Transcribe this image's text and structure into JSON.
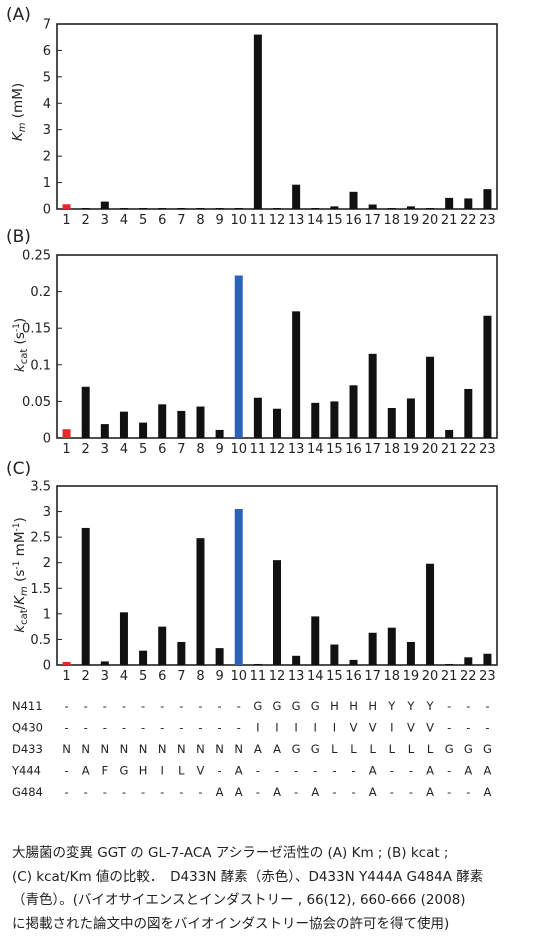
{
  "chart_data": [
    {
      "panel": "(A)",
      "type": "bar",
      "categories": [
        "1",
        "2",
        "3",
        "4",
        "5",
        "6",
        "7",
        "8",
        "9",
        "10",
        "11",
        "12",
        "13",
        "14",
        "15",
        "16",
        "17",
        "18",
        "19",
        "20",
        "21",
        "22",
        "23"
      ],
      "values": [
        0.18,
        0.02,
        0.28,
        0.02,
        0.02,
        0.02,
        0.02,
        0.02,
        0.02,
        0.02,
        6.6,
        0.02,
        0.92,
        0.02,
        0.1,
        0.65,
        0.17,
        0.02,
        0.1,
        0.02,
        0.42,
        0.4,
        0.75
      ],
      "ylabel": "K m (mM)",
      "ylim": [
        0,
        7
      ],
      "yticks": [
        "0",
        "1",
        "2",
        "3",
        "4",
        "5",
        "6",
        "7"
      ],
      "highlight": {
        "red": "1"
      },
      "grid": false
    },
    {
      "panel": "(B)",
      "type": "bar",
      "categories": [
        "1",
        "2",
        "3",
        "4",
        "5",
        "6",
        "7",
        "8",
        "9",
        "10",
        "11",
        "12",
        "13",
        "14",
        "15",
        "16",
        "17",
        "18",
        "19",
        "20",
        "21",
        "22",
        "23"
      ],
      "values": [
        0.012,
        0.07,
        0.019,
        0.036,
        0.021,
        0.046,
        0.037,
        0.043,
        0.011,
        0.222,
        0.055,
        0.04,
        0.173,
        0.048,
        0.05,
        0.072,
        0.115,
        0.041,
        0.054,
        0.111,
        0.011,
        0.067,
        0.167
      ],
      "ylabel": "k cat (s -1)",
      "ylim": [
        0,
        0.25
      ],
      "yticks": [
        "0",
        "0.05",
        "0.1",
        "0.15",
        "0.2",
        "0.25"
      ],
      "highlight": {
        "red": "1",
        "blue": "10"
      },
      "grid": false
    },
    {
      "panel": "(C)",
      "type": "bar",
      "categories": [
        "1",
        "2",
        "3",
        "4",
        "5",
        "6",
        "7",
        "8",
        "9",
        "10",
        "11",
        "12",
        "13",
        "14",
        "15",
        "16",
        "17",
        "18",
        "19",
        "20",
        "21",
        "22",
        "23"
      ],
      "values": [
        0.06,
        2.68,
        0.07,
        1.03,
        0.28,
        0.75,
        0.45,
        2.48,
        0.33,
        3.05,
        0.02,
        2.05,
        0.18,
        0.95,
        0.4,
        0.1,
        0.63,
        0.73,
        0.45,
        1.98,
        0.02,
        0.15,
        0.22
      ],
      "ylabel": "k cat/K m (s -1 mM -1)",
      "ylim": [
        0,
        3.5
      ],
      "yticks": [
        "0",
        "0.5",
        "1",
        "1.5",
        "2",
        "2.5",
        "3",
        "3.5"
      ],
      "highlight": {
        "red": "1",
        "blue": "10"
      },
      "grid": false
    }
  ],
  "colors": {
    "bar": "#111111",
    "wildtype": "#e8262d",
    "d433n": "#2c63b8",
    "axis": "#222222"
  },
  "mutation_table": {
    "rows": [
      {
        "label": "N411",
        "cells": [
          "-",
          "-",
          "-",
          "-",
          "-",
          "-",
          "-",
          "-",
          "-",
          "-",
          "G",
          "G",
          "G",
          "G",
          "H",
          "H",
          "H",
          "Y",
          "Y",
          "Y",
          "-",
          "-",
          "-"
        ]
      },
      {
        "label": "Q430",
        "cells": [
          "-",
          "-",
          "-",
          "-",
          "-",
          "-",
          "-",
          "-",
          "-",
          "-",
          "I",
          "I",
          "I",
          "I",
          "I",
          "V",
          "V",
          "I",
          "V",
          "V",
          "-",
          "-",
          "-"
        ]
      },
      {
        "label": "D433",
        "cells": [
          "N",
          "N",
          "N",
          "N",
          "N",
          "N",
          "N",
          "N",
          "N",
          "N",
          "A",
          "A",
          "G",
          "G",
          "L",
          "L",
          "L",
          "L",
          "L",
          "L",
          "G",
          "G",
          "G"
        ]
      },
      {
        "label": "Y444",
        "cells": [
          "-",
          "A",
          "F",
          "G",
          "H",
          "I",
          "L",
          "V",
          "-",
          "A",
          "-",
          "-",
          "-",
          "-",
          "-",
          "-",
          "A",
          "-",
          "-",
          "A",
          "-",
          "A",
          "A"
        ]
      },
      {
        "label": "G484",
        "cells": [
          "-",
          "-",
          "-",
          "-",
          "-",
          "-",
          "-",
          "-",
          "A",
          "A",
          "-",
          "A",
          "-",
          "A",
          "-",
          "-",
          "A",
          "-",
          "-",
          "A",
          "-",
          "-",
          "A"
        ]
      }
    ]
  },
  "caption": {
    "line1": "大腸菌の変異 GGT の GL-7-ACA アシラーゼ活性の (A) Km ; (B) kcat ;",
    "line2": "(C) kcat/Km 値の比較．　D433N 酵素（赤色）、D433N Y444A G484A 酵素",
    "line3": "（青色）。(バイオサイエンスとインダストリー , 66(12), 660-666 (2008)",
    "line4": "に掲載された論文中の図をバイオインダストリー協会の許可を得て使用)"
  }
}
